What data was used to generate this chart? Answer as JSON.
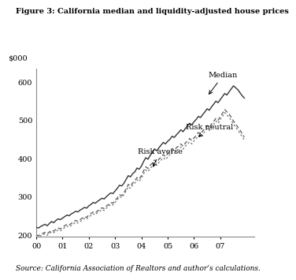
{
  "title": "Figure 3: California median and liquidity-adjusted house prices",
  "source": "Source: California Association of Realtors and author’s calculations.",
  "ylabel": "$000",
  "ylim": [
    195,
    635
  ],
  "yticks": [
    200,
    300,
    400,
    500,
    600
  ],
  "xlim": [
    0,
    8.3
  ],
  "xtick_positions": [
    0,
    1,
    2,
    3,
    4,
    5,
    6,
    7
  ],
  "xtick_labels": [
    "00",
    "01",
    "02",
    "03",
    "04",
    "05",
    "06",
    "07"
  ],
  "median": [
    220,
    218,
    222,
    225,
    228,
    224,
    230,
    235,
    232,
    238,
    242,
    240,
    244,
    248,
    252,
    250,
    255,
    258,
    262,
    260,
    265,
    268,
    272,
    270,
    276,
    280,
    285,
    283,
    288,
    292,
    296,
    294,
    300,
    305,
    310,
    308,
    315,
    322,
    330,
    328,
    335,
    345,
    355,
    352,
    360,
    365,
    375,
    372,
    380,
    392,
    402,
    398,
    408,
    415,
    425,
    420,
    428,
    435,
    442,
    438,
    445,
    450,
    458,
    455,
    462,
    468,
    475,
    470,
    478,
    485,
    492,
    488,
    496,
    502,
    510,
    507,
    515,
    522,
    530,
    526,
    535,
    542,
    550,
    546,
    554,
    562,
    570,
    566,
    574,
    582,
    590,
    585,
    580,
    572,
    564,
    558
  ],
  "risk_neutral": [
    200,
    198,
    202,
    204,
    207,
    203,
    208,
    212,
    210,
    215,
    218,
    216,
    220,
    224,
    228,
    226,
    230,
    234,
    238,
    236,
    240,
    244,
    248,
    246,
    252,
    256,
    260,
    258,
    263,
    267,
    271,
    269,
    275,
    280,
    285,
    283,
    290,
    297,
    305,
    303,
    310,
    320,
    332,
    328,
    336,
    342,
    350,
    346,
    355,
    368,
    378,
    374,
    382,
    388,
    396,
    390,
    398,
    404,
    410,
    405,
    412,
    418,
    426,
    422,
    428,
    433,
    438,
    432,
    440,
    446,
    452,
    447,
    454,
    460,
    468,
    464,
    472,
    479,
    486,
    481,
    490,
    497,
    505,
    500,
    510,
    518,
    528,
    522,
    516,
    508,
    498,
    490,
    482,
    474,
    465,
    456
  ],
  "risk_averse": [
    196,
    194,
    198,
    200,
    203,
    199,
    204,
    208,
    206,
    210,
    213,
    211,
    215,
    219,
    223,
    221,
    225,
    229,
    233,
    231,
    235,
    239,
    243,
    241,
    247,
    251,
    255,
    253,
    258,
    262,
    266,
    264,
    270,
    275,
    280,
    278,
    285,
    292,
    300,
    298,
    305,
    315,
    326,
    322,
    330,
    336,
    344,
    340,
    348,
    360,
    370,
    366,
    374,
    380,
    388,
    382,
    390,
    396,
    402,
    397,
    404,
    410,
    418,
    414,
    420,
    424,
    430,
    424,
    432,
    438,
    443,
    438,
    446,
    452,
    460,
    456,
    464,
    471,
    478,
    473,
    482,
    489,
    498,
    492,
    502,
    510,
    520,
    514,
    508,
    500,
    490,
    482,
    474,
    466,
    457,
    448
  ]
}
